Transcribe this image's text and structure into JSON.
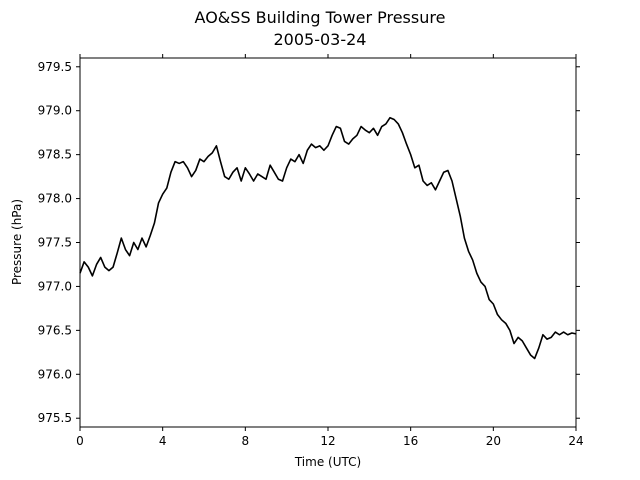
{
  "chart_data": {
    "type": "line",
    "title": "AO&SS Building Tower Pressure",
    "subtitle": "2005-03-24",
    "xlabel": "Time (UTC)",
    "ylabel": "Pressure (hPa)",
    "xlim": [
      0,
      24
    ],
    "ylim": [
      975.4,
      979.6
    ],
    "xticks": [
      0,
      4,
      8,
      12,
      16,
      20,
      24
    ],
    "yticks": [
      975.5,
      976.0,
      976.5,
      977.0,
      977.5,
      978.0,
      978.5,
      979.0,
      979.5
    ],
    "ytick_labels": [
      "975.5",
      "976.0",
      "976.5",
      "977.0",
      "977.5",
      "978.0",
      "978.5",
      "979.0",
      "979.5"
    ],
    "grid": false,
    "series": [
      {
        "color": "#000000",
        "x": [
          0.0,
          0.2,
          0.4,
          0.6,
          0.8,
          1.0,
          1.2,
          1.4,
          1.6,
          1.8,
          2.0,
          2.2,
          2.4,
          2.6,
          2.8,
          3.0,
          3.2,
          3.4,
          3.6,
          3.8,
          4.0,
          4.2,
          4.4,
          4.6,
          4.8,
          5.0,
          5.2,
          5.4,
          5.6,
          5.8,
          6.0,
          6.2,
          6.4,
          6.6,
          6.8,
          7.0,
          7.2,
          7.4,
          7.6,
          7.8,
          8.0,
          8.2,
          8.4,
          8.6,
          8.8,
          9.0,
          9.2,
          9.4,
          9.6,
          9.8,
          10.0,
          10.2,
          10.4,
          10.6,
          10.8,
          11.0,
          11.2,
          11.4,
          11.6,
          11.8,
          12.0,
          12.2,
          12.4,
          12.6,
          12.8,
          13.0,
          13.2,
          13.4,
          13.6,
          13.8,
          14.0,
          14.2,
          14.4,
          14.6,
          14.8,
          15.0,
          15.2,
          15.4,
          15.6,
          15.8,
          16.0,
          16.2,
          16.4,
          16.6,
          16.8,
          17.0,
          17.2,
          17.4,
          17.6,
          17.8,
          18.0,
          18.2,
          18.4,
          18.6,
          18.8,
          19.0,
          19.2,
          19.4,
          19.6,
          19.8,
          20.0,
          20.2,
          20.4,
          20.6,
          20.8,
          21.0,
          21.2,
          21.4,
          21.6,
          21.8,
          22.0,
          22.2,
          22.4,
          22.6,
          22.8,
          23.0,
          23.2,
          23.4,
          23.6,
          23.8,
          24.0
        ],
        "y": [
          977.15,
          977.28,
          977.22,
          977.12,
          977.25,
          977.33,
          977.22,
          977.18,
          977.22,
          977.38,
          977.55,
          977.42,
          977.35,
          977.5,
          977.42,
          977.55,
          977.45,
          977.58,
          977.72,
          977.95,
          978.05,
          978.12,
          978.3,
          978.42,
          978.4,
          978.42,
          978.35,
          978.25,
          978.32,
          978.45,
          978.42,
          978.48,
          978.52,
          978.6,
          978.42,
          978.25,
          978.22,
          978.3,
          978.35,
          978.2,
          978.35,
          978.28,
          978.2,
          978.28,
          978.25,
          978.22,
          978.38,
          978.3,
          978.22,
          978.2,
          978.35,
          978.45,
          978.42,
          978.5,
          978.4,
          978.55,
          978.62,
          978.58,
          978.6,
          978.55,
          978.6,
          978.72,
          978.82,
          978.8,
          978.65,
          978.62,
          978.68,
          978.72,
          978.82,
          978.78,
          978.75,
          978.8,
          978.72,
          978.82,
          978.85,
          978.92,
          978.9,
          978.85,
          978.75,
          978.62,
          978.5,
          978.35,
          978.38,
          978.2,
          978.15,
          978.18,
          978.1,
          978.2,
          978.3,
          978.32,
          978.2,
          978.0,
          977.8,
          977.55,
          977.4,
          977.3,
          977.15,
          977.05,
          977.0,
          976.85,
          976.8,
          976.68,
          976.62,
          976.58,
          976.5,
          976.35,
          976.42,
          976.38,
          976.3,
          976.22,
          976.18,
          976.3,
          976.45,
          976.4,
          976.42,
          976.48,
          976.45,
          976.48,
          976.45,
          976.47,
          976.46
        ]
      }
    ]
  }
}
